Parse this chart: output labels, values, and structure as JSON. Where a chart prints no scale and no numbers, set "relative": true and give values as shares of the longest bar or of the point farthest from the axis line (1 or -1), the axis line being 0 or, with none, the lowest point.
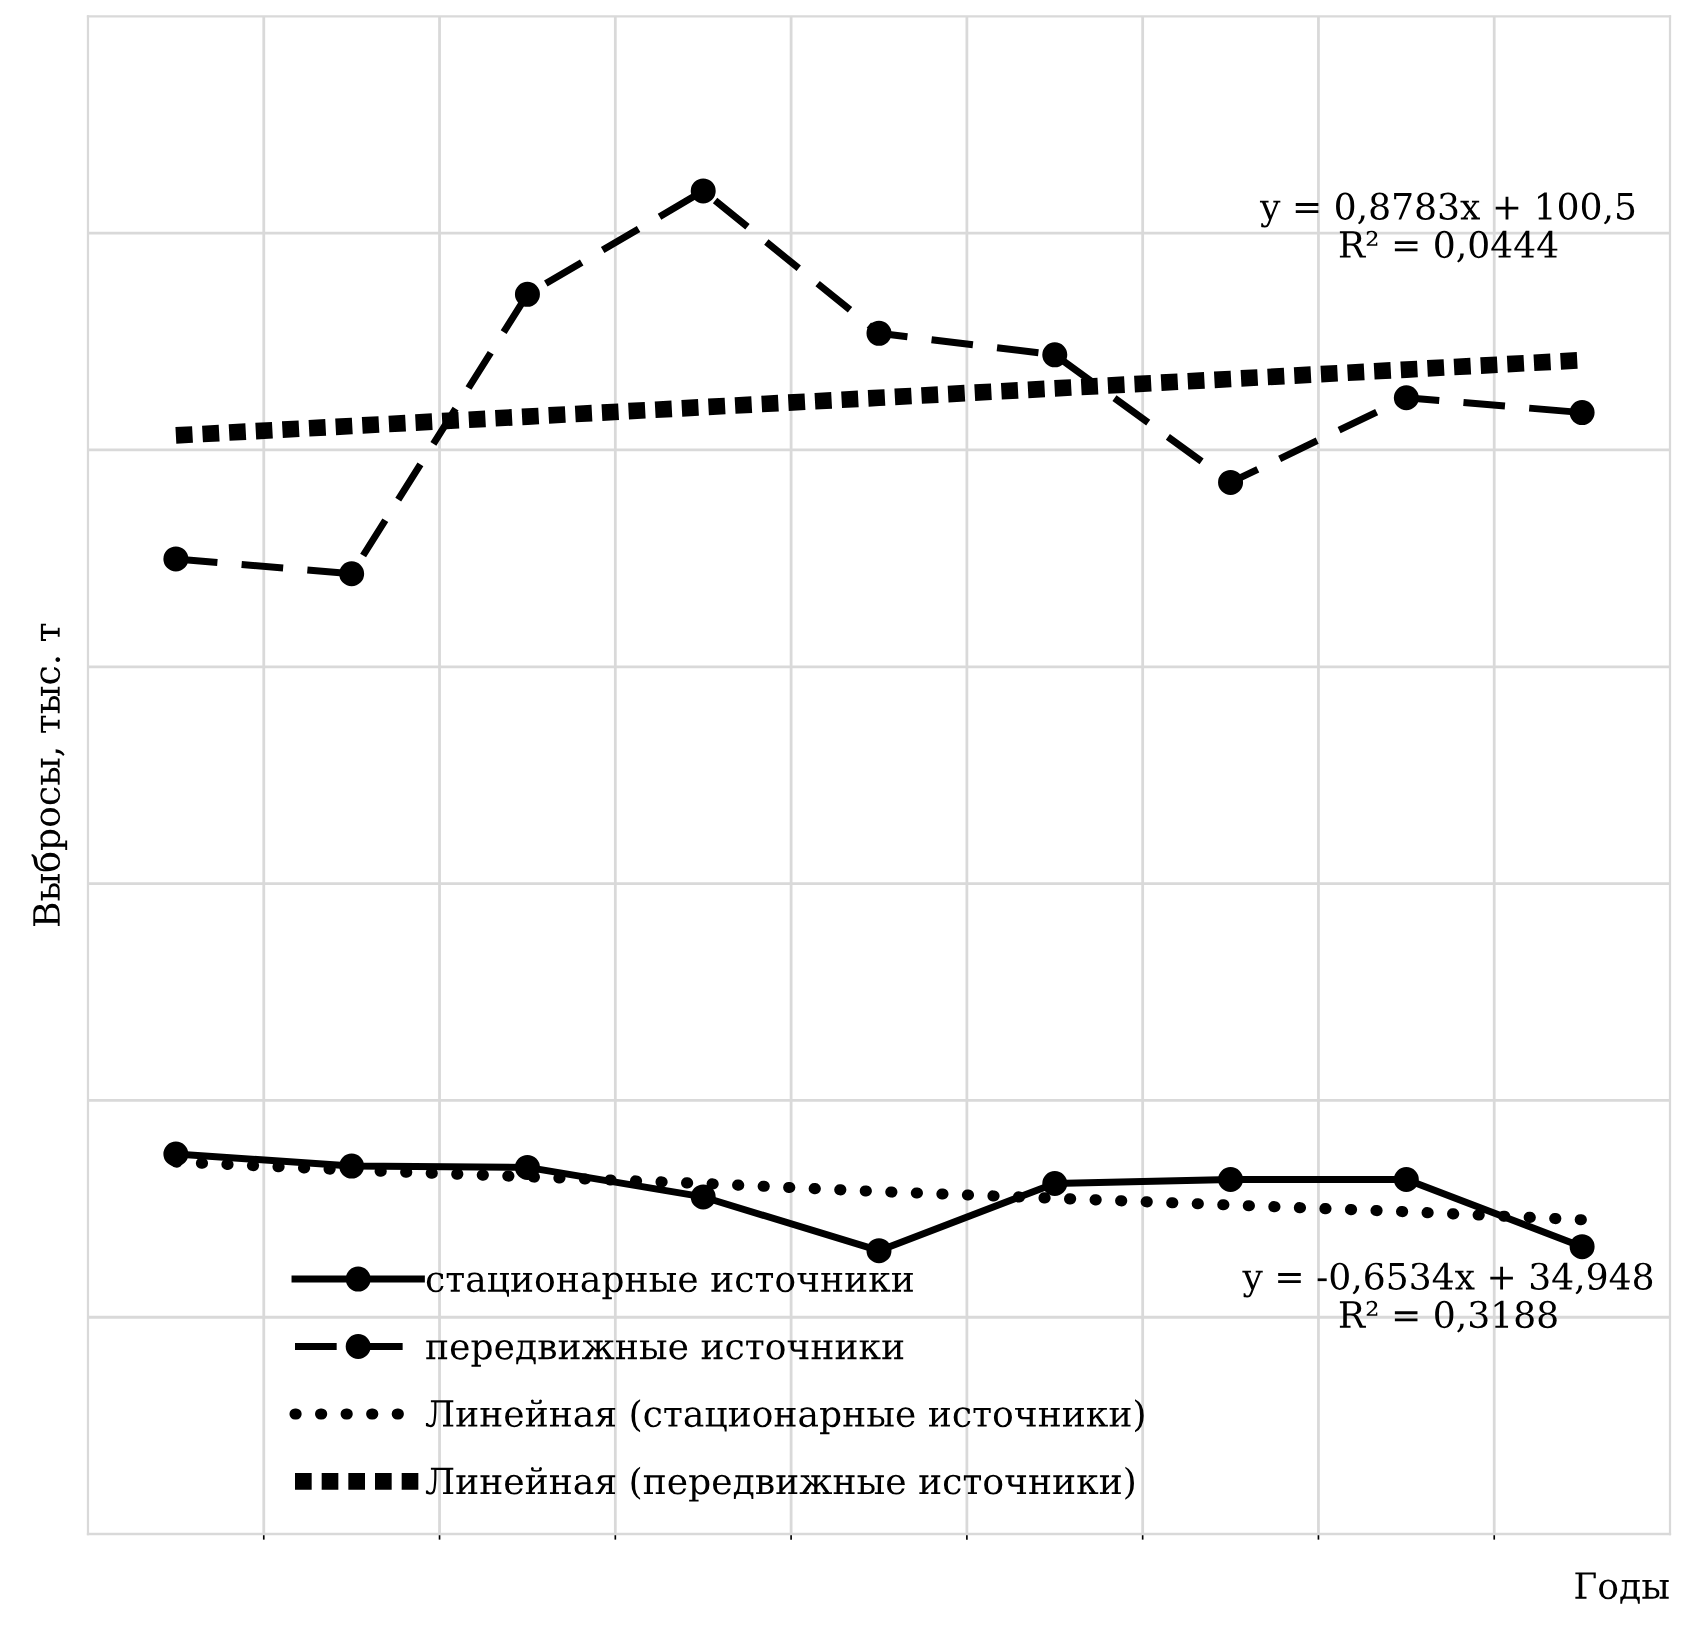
{
  "chart_data": {
    "type": "line",
    "relative": true,
    "ylabel": "Выбросы, тыс. т",
    "xlabel": "Годы",
    "categories": [
      null,
      null,
      null,
      null,
      null,
      null,
      null,
      null,
      null
    ],
    "grid": true,
    "legend": "bottom",
    "series": [
      {
        "name": "стационарные источники",
        "color": "#000000",
        "line_style": "solid",
        "marker": "circle",
        "values": [
          0.283,
          0.274,
          0.273,
          0.251,
          0.211,
          0.261,
          0.264,
          0.264,
          0.214
        ]
      },
      {
        "name": "передвижные источники",
        "color": "#000000",
        "line_style": "dashed",
        "marker": "circle",
        "values": [
          0.726,
          0.715,
          0.923,
          1.0,
          0.894,
          0.878,
          0.783,
          0.846,
          0.835
        ]
      },
      {
        "name": "Линейная (стационарные источники)",
        "color": "#000000",
        "line_style": "dotted",
        "marker": "none",
        "values": [
          0.277,
          0.271,
          0.266,
          0.261,
          0.255,
          0.25,
          0.245,
          0.24,
          0.234
        ]
      },
      {
        "name": "Линейная (передвижные источники)",
        "color": "#000000",
        "line_style": "dotted",
        "marker": "none",
        "values": [
          0.818,
          0.825,
          0.832,
          0.839,
          0.846,
          0.853,
          0.86,
          0.867,
          0.874
        ]
      }
    ],
    "annotations": [
      "y = 0,8783x + 100,5\nR² = 0,0444",
      "y = -0,6534x + 34,948\nR² = 0,3188"
    ]
  }
}
